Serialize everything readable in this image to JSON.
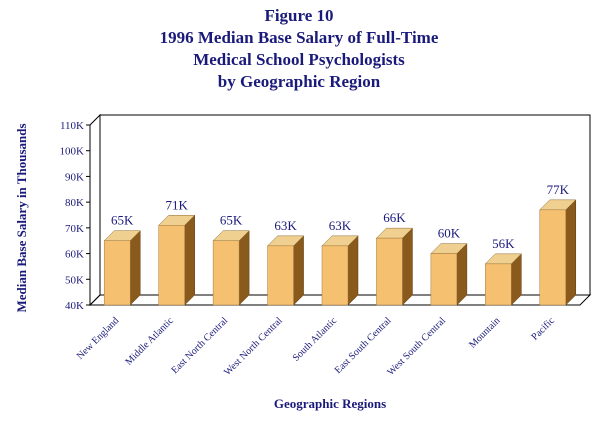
{
  "chart_data": {
    "type": "bar",
    "title_lines": [
      "Figure 10",
      "1996 Median Base Salary of Full-Time",
      "Medical School Psychologists",
      "by Geographic Region"
    ],
    "xlabel": "Geographic Regions",
    "ylabel": "Median Base Salary in Thousands",
    "categories": [
      "New England",
      "Middle Atlantic",
      "East North Central",
      "West North Central",
      "South Atlantic",
      "East South Central",
      "West South Central",
      "Mountain",
      "Pacific"
    ],
    "values": [
      65,
      71,
      65,
      63,
      63,
      66,
      60,
      56,
      77
    ],
    "data_labels": [
      "65K",
      "71K",
      "65K",
      "63K",
      "63K",
      "66K",
      "60K",
      "56K",
      "77K"
    ],
    "yticks": [
      40,
      50,
      60,
      70,
      80,
      90,
      100,
      110
    ],
    "ytick_labels": [
      "40K",
      "50K",
      "60K",
      "70K",
      "80K",
      "90K",
      "100K",
      "110K"
    ],
    "ylim": [
      40,
      110
    ],
    "grid": false,
    "legend": "none",
    "colors": {
      "bar_front": "#f5c070",
      "bar_side": "#8a5a1c",
      "bar_top": "#f0d090",
      "text": "#1a1a7a",
      "frame": "#000000"
    }
  }
}
